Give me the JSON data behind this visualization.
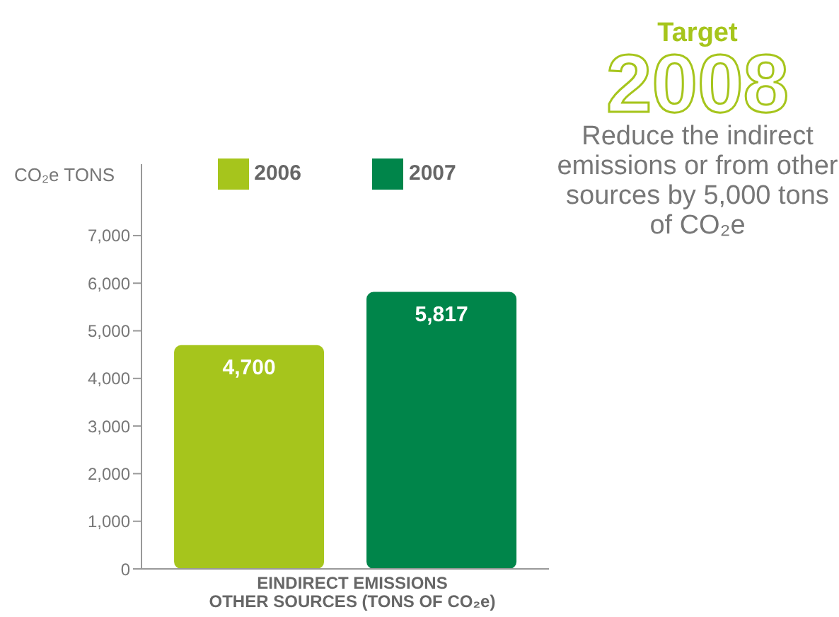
{
  "chart_data": {
    "type": "bar",
    "ylabel": "CO₂e TONS",
    "xlabel": "EINDIRECT EMISSIONS\nOTHER SOURCES (TONS OF CO₂e)",
    "categories": [
      null
    ],
    "series": [
      {
        "name": "2006",
        "color": "#a6c51c",
        "values": [
          4700
        ],
        "value_labels": [
          "4,700"
        ]
      },
      {
        "name": "2007",
        "color": "#00854a",
        "values": [
          5817
        ],
        "value_labels": [
          "5,817"
        ]
      }
    ],
    "ylim": [
      0,
      8500
    ],
    "yticks": [
      0,
      {
        "value": 1000,
        "label": "1,000"
      },
      {
        "value": 2000,
        "label": "2,000"
      },
      {
        "value": 3000,
        "label": "3,000"
      },
      {
        "value": 4000,
        "label": "4,000"
      },
      {
        "value": 5000,
        "label": "5,000"
      },
      {
        "value": 6000,
        "label": "6,000"
      },
      {
        "value": 7000,
        "label": "7,000"
      }
    ],
    "legend": "top",
    "grid": false,
    "annotations": [
      "Target",
      "2008",
      "Reduce the indirect emissions or from other sources by 5,000 tons of CO₂e"
    ]
  }
}
